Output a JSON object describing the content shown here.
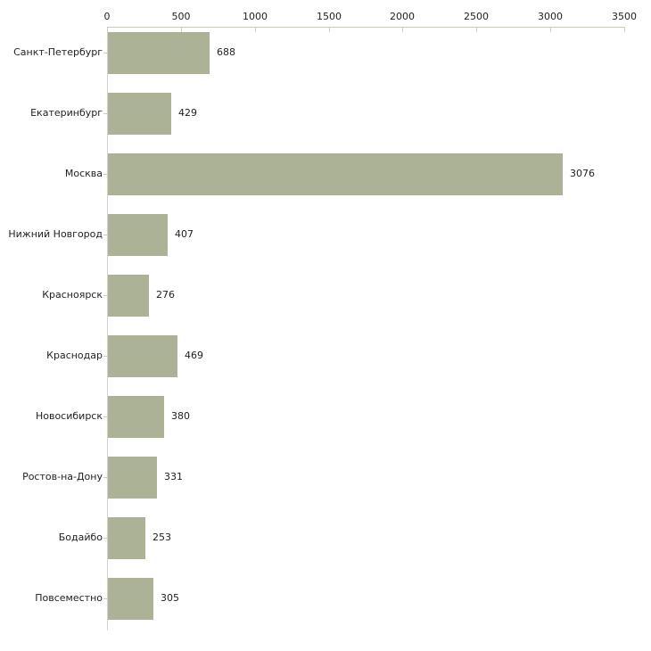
{
  "chart_data": {
    "type": "bar",
    "orientation": "horizontal",
    "categories": [
      "Санкт-Петербург",
      "Екатеринбург",
      "Москва",
      "Нижний Новгород",
      "Красноярск",
      "Краснодар",
      "Новосибирск",
      "Ростов-на-Дону",
      "Бодайбо",
      "Повсеместно"
    ],
    "values": [
      688,
      429,
      3076,
      407,
      276,
      469,
      380,
      331,
      253,
      305
    ],
    "value_labels": [
      "688",
      "429",
      "3076",
      "407",
      "276",
      "469",
      "380",
      "331",
      "253",
      "305"
    ],
    "title": "",
    "xlabel": "",
    "ylabel": "",
    "xlim": [
      0,
      3500
    ],
    "x_ticks": [
      0,
      500,
      1000,
      1500,
      2000,
      2500,
      3000,
      3500
    ],
    "x_tick_labels": [
      "0",
      "500",
      "1000",
      "1500",
      "2000",
      "2500",
      "3000",
      "3500"
    ],
    "axis_position": "top",
    "grid": false,
    "legend": false,
    "colors": {
      "bar_fill": "#acb295",
      "axis_line": "#c9cdb6",
      "y_axis_line": "#d2d2d2",
      "tick_mark": "#c9cfb5",
      "text": "#222222",
      "background": "#ffffff"
    }
  }
}
